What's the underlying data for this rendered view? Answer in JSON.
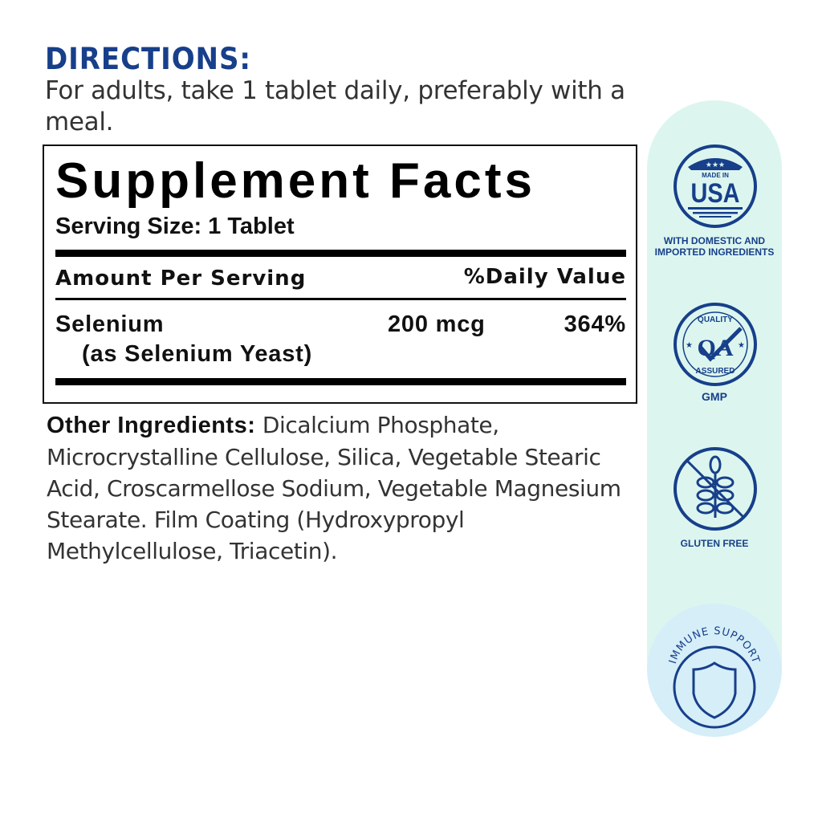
{
  "directions": {
    "heading": "DIRECTIONS:",
    "text": "For adults, take 1 tablet daily, preferably with a meal."
  },
  "facts": {
    "title": "Supplement Facts",
    "serving_size": "Serving Size: 1 Tablet",
    "header_amount": "Amount Per Serving",
    "header_dv": "%Daily Value",
    "rows": [
      {
        "name": "Selenium",
        "sub": "(as Selenium Yeast)",
        "amount": "200 mcg",
        "dv": "364%"
      }
    ]
  },
  "other_ingredients": {
    "label": "Other Ingredients:",
    "text": " Dicalcium Phosphate, Microcrystalline Cellulose, Silica, Vegetable Stearic Acid, Croscarmellose Sodium, Vegetable Magnesium Stearate. Film Coating (Hydroxypropyl Methylcellulose, Triacetin)."
  },
  "badges": [
    {
      "icon": "made-in-usa-icon",
      "logo_text": [
        "MADE IN",
        "USA"
      ],
      "label_lines": [
        "WITH DOMESTIC AND",
        "IMPORTED INGREDIENTS"
      ]
    },
    {
      "icon": "quality-assured-icon",
      "logo_text": [
        "QUALITY",
        "QA",
        "ASSURED"
      ],
      "label": "GMP"
    },
    {
      "icon": "gluten-free-icon",
      "label": "GLUTEN FREE"
    },
    {
      "icon": "shield-icon",
      "label": "IMMUNE SUPPORT"
    }
  ],
  "colors": {
    "brand_navy": "#173f8a",
    "pill_bg": "#dcf6ef",
    "immune_bg": "#d5eef8"
  }
}
